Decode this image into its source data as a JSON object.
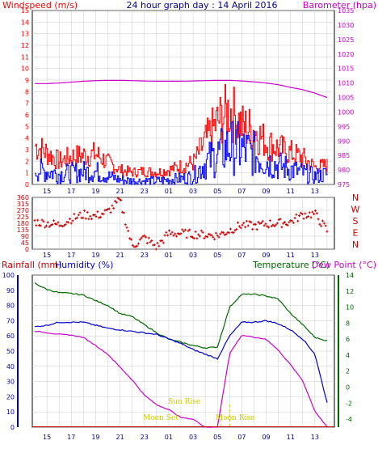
{
  "title": "24 hour graph day : 14 April 2016",
  "labels": {
    "windspeed": "Windspeed (m/s)",
    "barometer": "Barometer (hpa)",
    "rainfall": "Rainfall (mm)",
    "humidity": "Humidity (%)",
    "temperature": "Temperature (°C)",
    "dewpoint": "Dew Point (°C)"
  },
  "colors": {
    "windspeed": "#ff0000",
    "gust": "#ff0000",
    "wind_avg": "#0000ff",
    "barometer": "#cc00cc",
    "direction": "#cc0000",
    "rainfall": "#cc0000",
    "humidity": "#0000cc",
    "temperature": "#006600",
    "dewpoint": "#cc00cc",
    "sun": "#cccc00",
    "grid": "#c8c8c8"
  },
  "hour_ticks": [
    "15",
    "17",
    "19",
    "21",
    "23",
    "01",
    "03",
    "05",
    "07",
    "09",
    "11",
    "13",
    "15",
    "17",
    "19",
    "21",
    "23"
  ],
  "direction_letters": [
    "N",
    "W",
    "S",
    "E",
    "N"
  ],
  "annotations": {
    "sun_rise": "Sun Rise",
    "sun_set": "Moon Set",
    "moon_rise": "Moon Rise"
  },
  "chart_data": [
    {
      "type": "line",
      "panel": "wind-barometer",
      "left_axis": {
        "label": "Windspeed (m/s)",
        "ylim": [
          0,
          15
        ],
        "ticks": [
          0,
          1,
          2,
          3,
          4,
          5,
          6,
          7,
          8,
          9,
          10,
          11,
          12,
          13,
          14,
          15
        ]
      },
      "right_axis": {
        "label": "Barometer (hpa)",
        "ylim": [
          975,
          1035
        ],
        "ticks": [
          975,
          980,
          985,
          990,
          995,
          1000,
          1005,
          1010,
          1015,
          1020,
          1025,
          1030,
          1035
        ]
      },
      "x_hours": [
        14,
        15,
        16,
        17,
        18,
        19,
        20,
        21,
        22,
        23,
        24,
        25,
        26,
        27,
        28,
        29,
        30,
        31,
        32,
        33,
        34,
        35,
        36,
        37,
        38
      ],
      "series": [
        {
          "name": "Barometer",
          "axis": "right",
          "values": [
            1009.8,
            1009.8,
            1010.0,
            1010.3,
            1010.6,
            1010.8,
            1010.9,
            1010.9,
            1010.8,
            1010.7,
            1010.6,
            1010.6,
            1010.6,
            1010.7,
            1010.8,
            1010.9,
            1010.9,
            1010.7,
            1010.4,
            1010.0,
            1009.4,
            1008.5,
            1007.7,
            1006.5,
            1005.0
          ]
        },
        {
          "name": "Gust",
          "axis": "left",
          "values": [
            3.2,
            2.6,
            1.9,
            2.3,
            2.4,
            2.5,
            1.8,
            1.2,
            1.0,
            1.1,
            1.0,
            1.2,
            1.5,
            1.8,
            3.6,
            5.2,
            6.2,
            4.8,
            4.5,
            3.4,
            3.0,
            2.6,
            2.2,
            1.4,
            1.6
          ]
        },
        {
          "name": "Wind Speed",
          "axis": "left",
          "values": [
            1.3,
            1.1,
            0.9,
            1.0,
            1.1,
            1.1,
            0.7,
            0.4,
            0.3,
            0.3,
            0.3,
            0.4,
            0.5,
            0.7,
            1.9,
            2.6,
            3.3,
            3.0,
            2.6,
            2.0,
            1.6,
            1.3,
            1.0,
            0.7,
            0.9
          ]
        }
      ]
    },
    {
      "type": "scatter",
      "panel": "wind-direction",
      "ylabel": "Wind Direction",
      "ylim": [
        0,
        360
      ],
      "ticks": [
        0,
        45,
        90,
        135,
        180,
        225,
        270,
        315,
        360
      ],
      "x_hours": [
        14,
        15,
        16,
        17,
        18,
        19,
        20,
        21,
        22,
        23,
        24,
        25,
        26,
        27,
        28,
        29,
        30,
        31,
        32,
        33,
        34,
        35,
        36,
        37,
        38
      ],
      "values": [
        190,
        180,
        170,
        210,
        240,
        230,
        260,
        340,
        20,
        80,
        15,
        110,
        110,
        105,
        100,
        95,
        130,
        170,
        160,
        175,
        180,
        190,
        240,
        245,
        130
      ]
    },
    {
      "type": "line",
      "panel": "rain-humidity-temperature",
      "left_axis": {
        "label": "Humidity (%)",
        "ylim": [
          0,
          100
        ],
        "ticks": [
          0,
          10,
          20,
          30,
          40,
          50,
          60,
          70,
          80,
          90,
          100
        ]
      },
      "right_axis": {
        "label": "Temperature (°C)",
        "ylim": [
          -5,
          14
        ],
        "ticks": [
          -4,
          -2,
          0,
          2,
          4,
          6,
          8,
          10,
          12,
          14
        ]
      },
      "x_hours": [
        14,
        15,
        16,
        17,
        18,
        19,
        20,
        21,
        22,
        23,
        24,
        25,
        26,
        27,
        28,
        29,
        30,
        31,
        32,
        33,
        34,
        35,
        36,
        37,
        38
      ],
      "series": [
        {
          "name": "Humidity",
          "axis": "left",
          "values": [
            66,
            67,
            69,
            69,
            69,
            67,
            65,
            64,
            63,
            62,
            61,
            58,
            55,
            51,
            48,
            45,
            60,
            69,
            69,
            70,
            68,
            64,
            58,
            48,
            16
          ]
        },
        {
          "name": "Temperature",
          "axis": "right",
          "values": [
            13,
            12.2,
            11.8,
            11.7,
            11.5,
            10.8,
            10.2,
            9.2,
            8.8,
            7.8,
            6.8,
            6.0,
            5.6,
            5.2,
            4.9,
            5.0,
            10.0,
            11.6,
            11.6,
            11.4,
            11.0,
            9.2,
            7.8,
            6.2,
            5.8
          ]
        },
        {
          "name": "Dew Point",
          "axis": "right",
          "values": [
            7.0,
            6.8,
            6.6,
            6.5,
            6.2,
            5.2,
            4.1,
            2.5,
            0.9,
            -1.0,
            -2.2,
            -2.8,
            -3.8,
            -4.0,
            -5.0,
            -5.0,
            4.2,
            6.5,
            6.2,
            6.0,
            4.6,
            2.8,
            0.8,
            -3.0,
            -5.0
          ]
        }
      ]
    }
  ]
}
